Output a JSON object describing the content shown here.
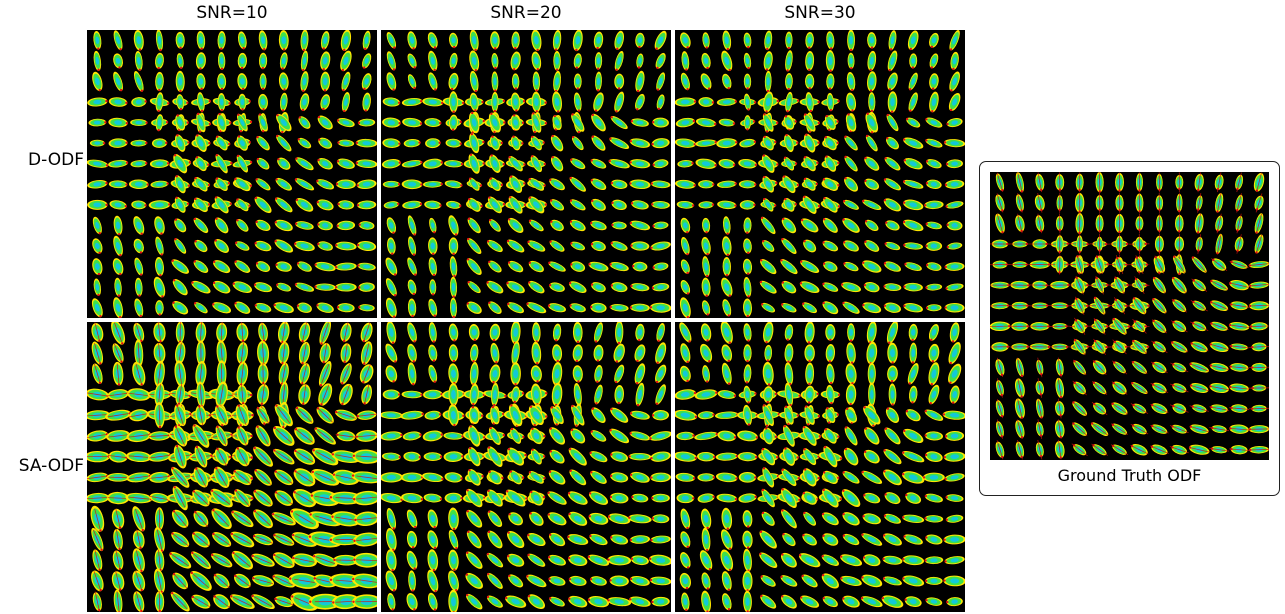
{
  "columns": [
    "SNR=10",
    "SNR=20",
    "SNR=30"
  ],
  "rows": [
    "D-ODF",
    "SA-ODF"
  ],
  "ground_truth_caption": "Ground Truth ODF",
  "colors": {
    "background": "#000000",
    "glyph_outer": "#ffe600",
    "glyph_mid": "#3ee04a",
    "glyph_core": "#12c9d8",
    "glyph_tip": "#e01010",
    "fiber_line": "#d01010"
  }
}
